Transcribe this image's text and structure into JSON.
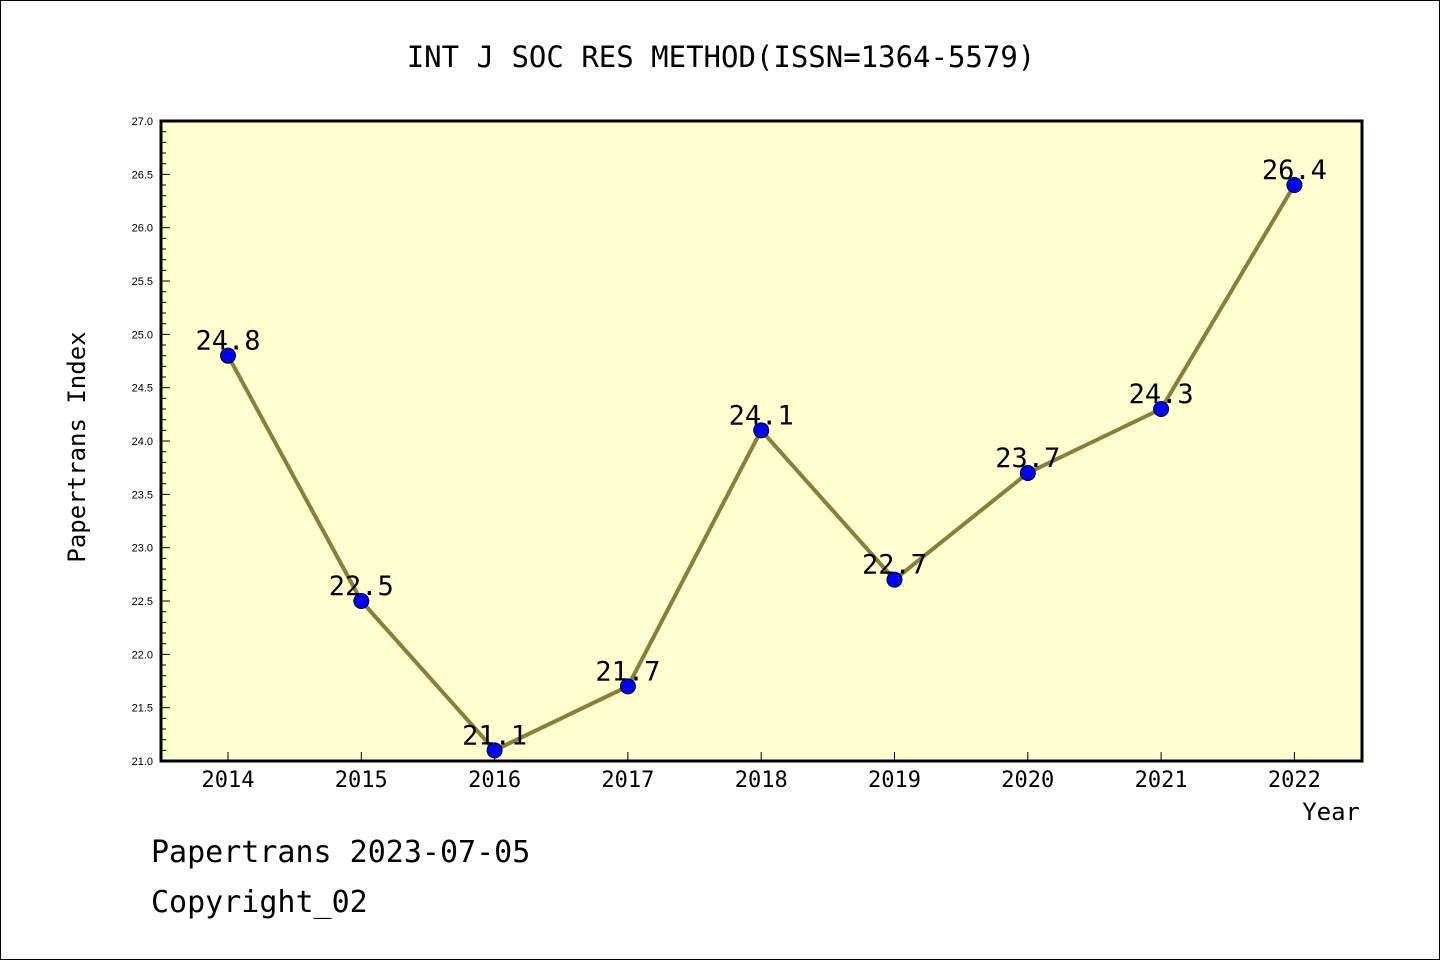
{
  "chart_data": {
    "type": "line",
    "title": "INT J SOC RES METHOD(ISSN=1364-5579)",
    "xlabel": "Year",
    "ylabel": "Papertrans Index",
    "categories": [
      "2014",
      "2015",
      "2016",
      "2017",
      "2018",
      "2019",
      "2020",
      "2021",
      "2022"
    ],
    "values": [
      24.8,
      22.5,
      21.1,
      21.7,
      24.1,
      22.7,
      23.7,
      24.3,
      26.4
    ],
    "data_labels": [
      "24.8",
      "22.5",
      "21.1",
      "21.7",
      "24.1",
      "22.7",
      "23.7",
      "24.3",
      "26.4"
    ],
    "ylim": [
      21.0,
      27.0
    ],
    "yticks": [
      "21.0",
      "21.5",
      "22.0",
      "22.5",
      "23.0",
      "23.5",
      "24.0",
      "24.5",
      "25.0",
      "25.5",
      "26.0",
      "26.5",
      "27.0"
    ],
    "grid": false,
    "colors": {
      "plot_background": "#ffffd0",
      "line": "#8b7d3a",
      "marker": "#0000ff"
    }
  },
  "footer": {
    "line1": "Papertrans 2023-07-05",
    "line2": "Copyright_02"
  }
}
